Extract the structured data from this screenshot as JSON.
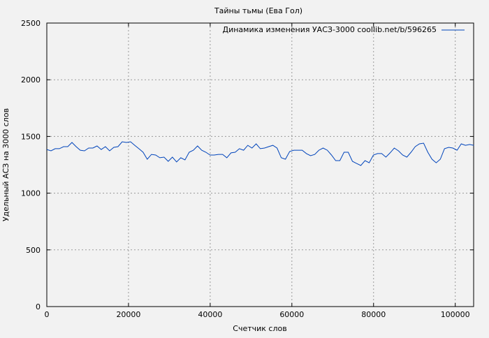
{
  "chart_data": {
    "type": "line",
    "title": "Тайны тьмы (Ева Гол)",
    "xlabel": "Счетчик слов",
    "ylabel": "Удельный АСЗ на 3000 слов",
    "xlim": [
      0,
      104500
    ],
    "ylim": [
      0,
      2500
    ],
    "xticks": [
      "0",
      "20000",
      "40000",
      "60000",
      "80000",
      "100000"
    ],
    "xtick_values": [
      0,
      20000,
      40000,
      60000,
      80000,
      100000
    ],
    "yticks": [
      "0",
      "500",
      "1000",
      "1500",
      "2000",
      "2500"
    ],
    "ytick_values": [
      0,
      500,
      1000,
      1500,
      2000,
      2500
    ],
    "grid": true,
    "legend_position": "top-right",
    "series": [
      {
        "name": "Динамика изменения УАСЗ-3000 coollib.net/b/596265",
        "color": "#0044bb",
        "x_start": 0,
        "x_step": 1025,
        "values": [
          1385,
          1373,
          1392,
          1392,
          1410,
          1410,
          1447,
          1410,
          1379,
          1373,
          1398,
          1398,
          1416,
          1385,
          1410,
          1373,
          1404,
          1410,
          1453,
          1447,
          1453,
          1422,
          1392,
          1361,
          1299,
          1342,
          1336,
          1312,
          1318,
          1281,
          1318,
          1275,
          1312,
          1293,
          1361,
          1379,
          1416,
          1379,
          1361,
          1336,
          1336,
          1342,
          1342,
          1312,
          1355,
          1361,
          1392,
          1379,
          1422,
          1398,
          1435,
          1392,
          1398,
          1410,
          1422,
          1398,
          1312,
          1299,
          1367,
          1379,
          1379,
          1379,
          1349,
          1330,
          1342,
          1379,
          1398,
          1379,
          1336,
          1287,
          1287,
          1361,
          1361,
          1281,
          1262,
          1244,
          1287,
          1268,
          1336,
          1349,
          1349,
          1318,
          1355,
          1398,
          1373,
          1336,
          1318,
          1361,
          1410,
          1435,
          1441,
          1361,
          1299,
          1268,
          1299,
          1392,
          1404,
          1398,
          1379,
          1435,
          1422,
          1429,
          1422
        ]
      }
    ]
  }
}
